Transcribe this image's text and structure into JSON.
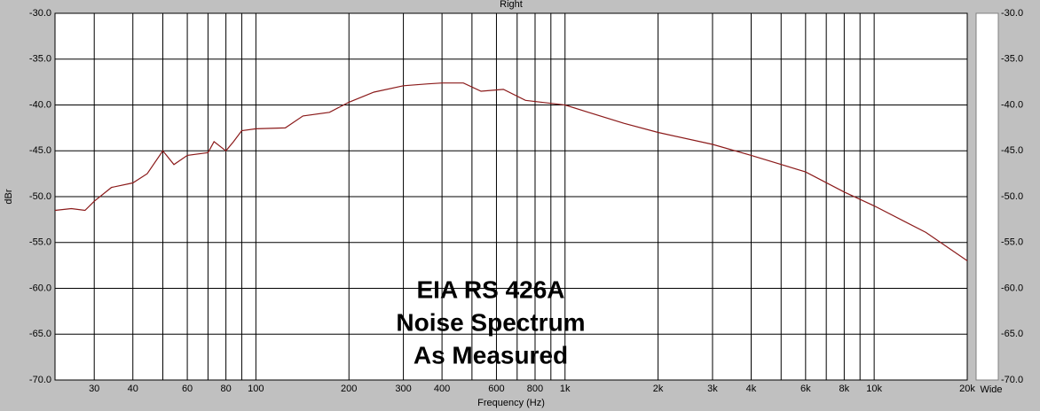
{
  "chart_data": {
    "type": "line",
    "title": "Right",
    "xlabel": "Frequency (Hz)",
    "ylabel": "dBr",
    "annotation": [
      "EIA RS 426A",
      "Noise Spectrum",
      "As Measured"
    ],
    "right_label": "Wide",
    "xscale": "log",
    "xlim": [
      22.4,
      20000
    ],
    "ylim": [
      -70,
      -30
    ],
    "grid": true,
    "xticks": [
      30,
      40,
      60,
      80,
      100,
      200,
      300,
      400,
      600,
      800,
      {
        "value": 1000,
        "label": "1k"
      },
      {
        "value": 2000,
        "label": "2k"
      },
      {
        "value": 3000,
        "label": "3k"
      },
      {
        "value": 4000,
        "label": "4k"
      },
      {
        "value": 6000,
        "label": "6k"
      },
      {
        "value": 8000,
        "label": "8k"
      },
      {
        "value": 10000,
        "label": "10k"
      },
      {
        "value": 20000,
        "label": "20k"
      }
    ],
    "xminor": [
      50,
      70,
      90,
      500,
      700,
      900,
      5000,
      7000,
      9000
    ],
    "yticks": [
      {
        "value": -30,
        "label": "-30.0"
      },
      {
        "value": -35,
        "label": "-35.0"
      },
      {
        "value": -40,
        "label": "-40.0"
      },
      {
        "value": -45,
        "label": "-45.0"
      },
      {
        "value": -50,
        "label": "-50.0"
      },
      {
        "value": -55,
        "label": "-55.0"
      },
      {
        "value": -60,
        "label": "-60.0"
      },
      {
        "value": -65,
        "label": "-65.0"
      },
      {
        "value": -70,
        "label": "-70.0"
      }
    ],
    "x": [
      22.4,
      25.3,
      28,
      30,
      34.1,
      40,
      44.5,
      50,
      54.3,
      60,
      70,
      73.2,
      80,
      84.7,
      90,
      100,
      124.5,
      142,
      173,
      200,
      241,
      300,
      360,
      400,
      469,
      535,
      632,
      745,
      1000,
      1190,
      1550,
      2000,
      3000,
      4000,
      6000,
      8000,
      10000,
      14700,
      20000
    ],
    "series": [
      {
        "name": "Right",
        "color": "#8b1a1a",
        "values": [
          -51.5,
          -51.3,
          -51.5,
          -50.5,
          -49,
          -48.5,
          -47.5,
          -45,
          -46.5,
          -45.5,
          -45.2,
          -44,
          -45,
          -44,
          -42.8,
          -42.6,
          -42.5,
          -41.2,
          -40.8,
          -39.7,
          -38.6,
          -37.9,
          -37.7,
          -37.6,
          -37.6,
          -38.5,
          -38.3,
          -39.5,
          -40,
          -40.8,
          -42,
          -43,
          -44.3,
          -45.5,
          -47.3,
          -49.5,
          -51,
          -53.9,
          -57
        ]
      }
    ]
  }
}
